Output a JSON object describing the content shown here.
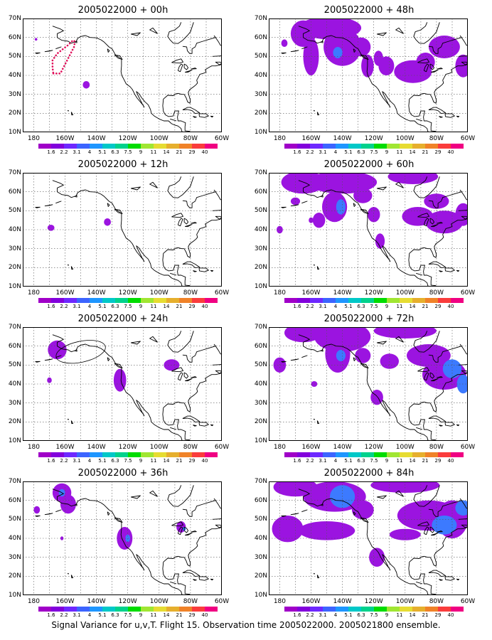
{
  "caption": "Signal Variance for u,v,T. Flight 15. Observation time 2005022000. 2005021800 ensemble.",
  "axes": {
    "y_ticks": [
      "70N",
      "60N",
      "50N",
      "40N",
      "30N",
      "20N",
      "10N"
    ],
    "x_ticks": [
      "180",
      "160W",
      "140W",
      "120W",
      "100W",
      "80W",
      "60W"
    ]
  },
  "colorbar": {
    "labels": [
      "1.6",
      "2.2",
      "3.1",
      "4",
      "5.1",
      "6.3",
      "7.5",
      "9",
      "11",
      "14",
      "21",
      "29",
      "40"
    ],
    "colors": [
      "#a000c8",
      "#8200dc",
      "#6e28ff",
      "#3c64ff",
      "#1e96ff",
      "#00c8c8",
      "#00d28c",
      "#00dc00",
      "#a0e632",
      "#e6dc32",
      "#e6af2d",
      "#f08228",
      "#fa3c3c",
      "#f00082"
    ]
  },
  "panels": [
    {
      "title": "2005022000 + 00h",
      "blobs": [
        [
          -178.5,
          59,
          0.8,
          0.7,
          0
        ],
        [
          -146.5,
          35,
          2.2,
          2,
          0
        ]
      ],
      "track": true,
      "ellipse": false
    },
    {
      "title": "2005022000 + 48h",
      "blobs": [
        [
          -165,
          62,
          8,
          7,
          0
        ],
        [
          -148,
          65,
          20,
          6,
          0
        ],
        [
          -160,
          50,
          5,
          10,
          0
        ],
        [
          -140,
          55,
          12,
          10,
          0
        ],
        [
          -143,
          52,
          3,
          3,
          1
        ],
        [
          -128,
          55,
          6,
          5,
          0
        ],
        [
          -124,
          45,
          4,
          6,
          0
        ],
        [
          -117,
          49,
          3,
          4,
          0
        ],
        [
          -112,
          45,
          5,
          5,
          0
        ],
        [
          -95,
          42,
          12,
          6,
          0
        ],
        [
          -87,
          47,
          6,
          5,
          0
        ],
        [
          -75,
          55,
          10,
          6,
          0
        ],
        [
          -63,
          45,
          5,
          6,
          0
        ],
        [
          -177,
          57,
          2,
          2,
          0
        ]
      ],
      "track": false,
      "ellipse": false
    },
    {
      "title": "2005022000 + 12h",
      "blobs": [
        [
          -169,
          41,
          2.2,
          1.6,
          0
        ],
        [
          -133,
          44,
          2.2,
          2,
          0
        ]
      ],
      "track": false,
      "ellipse": false
    },
    {
      "title": "2005022000 + 60h",
      "blobs": [
        [
          -165,
          65,
          14,
          6,
          0
        ],
        [
          -140,
          65,
          22,
          6,
          0
        ],
        [
          -95,
          68,
          16,
          4,
          0
        ],
        [
          -145,
          52,
          8,
          8,
          0
        ],
        [
          -141,
          52,
          3,
          4,
          1
        ],
        [
          -155,
          45,
          4,
          4,
          0
        ],
        [
          -127,
          58,
          6,
          4,
          0
        ],
        [
          -120,
          48,
          4,
          4,
          0
        ],
        [
          -116,
          34,
          3,
          4,
          0
        ],
        [
          -92,
          47,
          10,
          5,
          0
        ],
        [
          -75,
          44,
          12,
          6,
          0
        ],
        [
          -63,
          48,
          5,
          6,
          0
        ],
        [
          -80,
          55,
          8,
          4,
          0
        ],
        [
          -170,
          55,
          3,
          2,
          0
        ],
        [
          -160,
          45,
          1.5,
          1.5,
          0
        ],
        [
          -180,
          40,
          2,
          2,
          0
        ]
      ],
      "track": false,
      "ellipse": false
    },
    {
      "title": "2005022000 + 24h",
      "blobs": [
        [
          -165,
          58,
          6,
          5,
          0
        ],
        [
          -170,
          42,
          1.5,
          1.5,
          0
        ],
        [
          -125,
          42,
          4,
          6,
          0
        ],
        [
          -92,
          50,
          5,
          3,
          0
        ]
      ],
      "track": false,
      "ellipse": true
    },
    {
      "title": "2005022000 + 72h",
      "blobs": [
        [
          -165,
          67,
          12,
          5,
          0
        ],
        [
          -140,
          65,
          18,
          8,
          0
        ],
        [
          -100,
          68,
          20,
          4,
          0
        ],
        [
          -143,
          56,
          8,
          10,
          0
        ],
        [
          -141,
          55,
          3,
          3,
          1
        ],
        [
          -180,
          50,
          4,
          4,
          0
        ],
        [
          -158,
          40,
          2,
          1.5,
          0
        ],
        [
          -127,
          55,
          5,
          4,
          0
        ],
        [
          -118,
          33,
          4,
          4,
          0
        ],
        [
          -85,
          55,
          14,
          6,
          0
        ],
        [
          -75,
          45,
          14,
          8,
          0
        ],
        [
          -70,
          48,
          6,
          5,
          1
        ],
        [
          -63,
          40,
          4,
          5,
          1
        ],
        [
          -110,
          52,
          6,
          4,
          0
        ]
      ],
      "track": false,
      "ellipse": false
    },
    {
      "title": "2005022000 + 36h",
      "blobs": [
        [
          -162,
          64,
          6,
          5,
          0
        ],
        [
          -158,
          58,
          5,
          5,
          0
        ],
        [
          -162,
          64,
          2,
          2,
          1
        ],
        [
          -178,
          55,
          2,
          2,
          0
        ],
        [
          -162,
          40,
          1,
          1,
          0
        ],
        [
          -122,
          40,
          5,
          6,
          0
        ],
        [
          -120,
          40,
          1.5,
          2,
          1
        ],
        [
          -86,
          46,
          3,
          3,
          0
        ],
        [
          -84,
          45,
          1,
          1,
          1
        ]
      ],
      "track": false,
      "ellipse": false
    },
    {
      "title": "2005022000 + 84h",
      "blobs": [
        [
          -170,
          67,
          14,
          5,
          0
        ],
        [
          -145,
          62,
          20,
          8,
          0
        ],
        [
          -100,
          68,
          22,
          4,
          0
        ],
        [
          -140,
          62,
          8,
          6,
          1
        ],
        [
          -175,
          45,
          10,
          7,
          0
        ],
        [
          -150,
          44,
          18,
          5,
          0
        ],
        [
          -127,
          55,
          7,
          5,
          0
        ],
        [
          -118,
          30,
          5,
          5,
          0
        ],
        [
          -85,
          52,
          20,
          8,
          0
        ],
        [
          -70,
          50,
          10,
          10,
          0
        ],
        [
          -75,
          47,
          8,
          5,
          1
        ],
        [
          -63,
          56,
          5,
          4,
          1
        ],
        [
          -100,
          42,
          10,
          3,
          0
        ]
      ],
      "track": false,
      "ellipse": false
    }
  ]
}
